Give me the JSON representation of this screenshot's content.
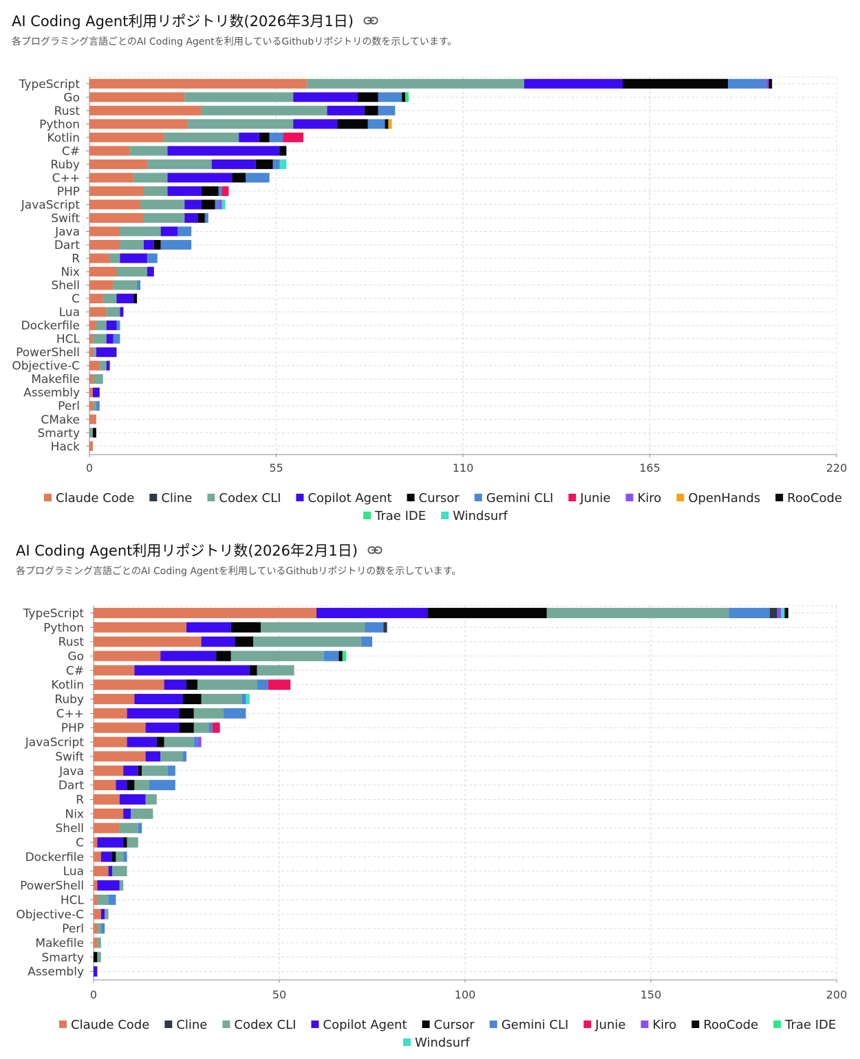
{
  "colors": {
    "Claude Code": "#e07a5a",
    "Cline": "#2f3a45",
    "Codex CLI": "#74a99a",
    "Copilot Agent": "#3d0bf0",
    "Cursor": "#050505",
    "Gemini CLI": "#4a87d4",
    "Junie": "#f0115c",
    "Kiro": "#8a52f2",
    "OpenHands": "#f5a312",
    "RooCode": "#0a0a0a",
    "Trae IDE": "#2ee886",
    "Windsurf": "#3ee0c6"
  },
  "charts": [
    {
      "title": "AI Coding Agent利用リポジトリ数(2026年3月1日)",
      "subtitle": "各プログラミング言語ごとのAI Coding Agentを利用しているGithubリポジトリの数を示しています。"
    },
    {
      "title": "AI Coding Agent利用リポジトリ数(2026年2月1日)",
      "subtitle": "各プログラミング言語ごとのAI Coding Agentを利用しているGithubリポジトリの数を示しています。"
    }
  ],
  "chart_data": [
    {
      "type": "bar",
      "orientation": "horizontal",
      "stacked": true,
      "title": "AI Coding Agent利用リポジトリ数(2026年3月1日)",
      "xlim": [
        0,
        220
      ],
      "xticks": [
        0,
        55,
        110,
        165,
        220
      ],
      "grid": true,
      "legend_position": "bottom",
      "series_names": [
        "Claude Code",
        "Cline",
        "Codex CLI",
        "Copilot Agent",
        "Cursor",
        "Gemini CLI",
        "Junie",
        "Kiro",
        "OpenHands",
        "RooCode",
        "Trae IDE",
        "Windsurf"
      ],
      "categories": [
        "TypeScript",
        "Go",
        "Rust",
        "Python",
        "Kotlin",
        "C#",
        "Ruby",
        "C++",
        "PHP",
        "JavaScript",
        "Swift",
        "Java",
        "Dart",
        "R",
        "Nix",
        "Shell",
        "C",
        "Lua",
        "Dockerfile",
        "HCL",
        "PowerShell",
        "Objective-C",
        "Makefile",
        "Assembly",
        "Perl",
        "CMake",
        "Smarty",
        "Hack"
      ],
      "stacks": [
        [
          [
            "Claude Code",
            64
          ],
          [
            "Codex CLI",
            64
          ],
          [
            "Copilot Agent",
            29
          ],
          [
            "Cursor",
            31
          ],
          [
            "Gemini CLI",
            11
          ],
          [
            "Kiro",
            1
          ],
          [
            "RooCode",
            1
          ]
        ],
        [
          [
            "Claude Code",
            28
          ],
          [
            "Codex CLI",
            32
          ],
          [
            "Copilot Agent",
            19
          ],
          [
            "Cursor",
            6
          ],
          [
            "Gemini CLI",
            7
          ],
          [
            "RooCode",
            1
          ],
          [
            "Trae IDE",
            1
          ]
        ],
        [
          [
            "Claude Code",
            33
          ],
          [
            "Codex CLI",
            37
          ],
          [
            "Copilot Agent",
            11
          ],
          [
            "Cursor",
            4
          ],
          [
            "Gemini CLI",
            5
          ]
        ],
        [
          [
            "Claude Code",
            29
          ],
          [
            "Codex CLI",
            31
          ],
          [
            "Copilot Agent",
            13
          ],
          [
            "Cursor",
            9
          ],
          [
            "Gemini CLI",
            5
          ],
          [
            "RooCode",
            1
          ],
          [
            "OpenHands",
            1
          ]
        ],
        [
          [
            "Claude Code",
            22
          ],
          [
            "Codex CLI",
            22
          ],
          [
            "Copilot Agent",
            6
          ],
          [
            "Cursor",
            3
          ],
          [
            "Gemini CLI",
            4
          ],
          [
            "Junie",
            6
          ]
        ],
        [
          [
            "Claude Code",
            12
          ],
          [
            "Codex CLI",
            11
          ],
          [
            "Copilot Agent",
            33
          ],
          [
            "Cursor",
            2
          ]
        ],
        [
          [
            "Claude Code",
            17
          ],
          [
            "Codex CLI",
            19
          ],
          [
            "Copilot Agent",
            13
          ],
          [
            "Cursor",
            5
          ],
          [
            "Gemini CLI",
            2
          ],
          [
            "Windsurf",
            2
          ]
        ],
        [
          [
            "Claude Code",
            13
          ],
          [
            "Codex CLI",
            10
          ],
          [
            "Copilot Agent",
            19
          ],
          [
            "Cursor",
            4
          ],
          [
            "Gemini CLI",
            7
          ]
        ],
        [
          [
            "Claude Code",
            16
          ],
          [
            "Codex CLI",
            7
          ],
          [
            "Copilot Agent",
            10
          ],
          [
            "Cursor",
            5
          ],
          [
            "Gemini CLI",
            1
          ],
          [
            "Junie",
            2
          ]
        ],
        [
          [
            "Claude Code",
            15
          ],
          [
            "Codex CLI",
            13
          ],
          [
            "Copilot Agent",
            5
          ],
          [
            "Cursor",
            4
          ],
          [
            "Gemini CLI",
            1
          ],
          [
            "Kiro",
            1
          ],
          [
            "Windsurf",
            1
          ]
        ],
        [
          [
            "Claude Code",
            16
          ],
          [
            "Codex CLI",
            12
          ],
          [
            "Copilot Agent",
            4
          ],
          [
            "Cursor",
            2
          ],
          [
            "Gemini CLI",
            1
          ]
        ],
        [
          [
            "Claude Code",
            9
          ],
          [
            "Codex CLI",
            12
          ],
          [
            "Copilot Agent",
            5
          ],
          [
            "Gemini CLI",
            4
          ]
        ],
        [
          [
            "Claude Code",
            9
          ],
          [
            "Codex CLI",
            7
          ],
          [
            "Copilot Agent",
            3
          ],
          [
            "Cursor",
            2
          ],
          [
            "Gemini CLI",
            9
          ]
        ],
        [
          [
            "Claude Code",
            6
          ],
          [
            "Codex CLI",
            3
          ],
          [
            "Copilot Agent",
            8
          ],
          [
            "Gemini CLI",
            3
          ]
        ],
        [
          [
            "Claude Code",
            8
          ],
          [
            "Codex CLI",
            9
          ],
          [
            "Copilot Agent",
            2
          ]
        ],
        [
          [
            "Claude Code",
            7
          ],
          [
            "Codex CLI",
            7
          ],
          [
            "Gemini CLI",
            1
          ]
        ],
        [
          [
            "Claude Code",
            4
          ],
          [
            "Codex CLI",
            4
          ],
          [
            "Copilot Agent",
            5
          ],
          [
            "Cursor",
            1
          ]
        ],
        [
          [
            "Claude Code",
            5
          ],
          [
            "Codex CLI",
            4
          ],
          [
            "Copilot Agent",
            1
          ]
        ],
        [
          [
            "Claude Code",
            2
          ],
          [
            "Codex CLI",
            3
          ],
          [
            "Copilot Agent",
            3
          ],
          [
            "Gemini CLI",
            1
          ]
        ],
        [
          [
            "Claude Code",
            1
          ],
          [
            "Codex CLI",
            4
          ],
          [
            "Copilot Agent",
            2
          ],
          [
            "Gemini CLI",
            2
          ]
        ],
        [
          [
            "Claude Code",
            1
          ],
          [
            "Codex CLI",
            1
          ],
          [
            "Copilot Agent",
            6
          ]
        ],
        [
          [
            "Claude Code",
            3
          ],
          [
            "Codex CLI",
            2
          ],
          [
            "Copilot Agent",
            1
          ]
        ],
        [
          [
            "Claude Code",
            1
          ],
          [
            "Codex CLI",
            3
          ]
        ],
        [
          [
            "Claude Code",
            1
          ],
          [
            "Copilot Agent",
            2
          ]
        ],
        [
          [
            "Claude Code",
            1
          ],
          [
            "Codex CLI",
            1
          ],
          [
            "Gemini CLI",
            1
          ]
        ],
        [
          [
            "Claude Code",
            2
          ]
        ],
        [
          [
            "Codex CLI",
            1
          ],
          [
            "Cursor",
            1
          ]
        ],
        [
          [
            "Claude Code",
            1
          ]
        ]
      ]
    },
    {
      "type": "bar",
      "orientation": "horizontal",
      "stacked": true,
      "title": "AI Coding Agent利用リポジトリ数(2026年2月1日)",
      "xlim": [
        0,
        200
      ],
      "xticks": [
        0,
        50,
        100,
        150,
        200
      ],
      "grid": true,
      "legend_position": "bottom",
      "series_names": [
        "Claude Code",
        "Cline",
        "Codex CLI",
        "Copilot Agent",
        "Cursor",
        "Gemini CLI",
        "Junie",
        "Kiro",
        "RooCode",
        "Trae IDE",
        "Windsurf"
      ],
      "categories": [
        "TypeScript",
        "Python",
        "Rust",
        "Go",
        "C#",
        "Kotlin",
        "Ruby",
        "C++",
        "PHP",
        "JavaScript",
        "Swift",
        "Java",
        "Dart",
        "R",
        "Nix",
        "Shell",
        "C",
        "Dockerfile",
        "Lua",
        "PowerShell",
        "HCL",
        "Objective-C",
        "Perl",
        "Makefile",
        "Smarty",
        "Assembly"
      ],
      "stacks": [
        [
          [
            "Claude Code",
            60
          ],
          [
            "Copilot Agent",
            30
          ],
          [
            "Cursor",
            32
          ],
          [
            "Codex CLI",
            49
          ],
          [
            "Gemini CLI",
            11
          ],
          [
            "Cline",
            2
          ],
          [
            "Kiro",
            1
          ],
          [
            "Windsurf",
            1
          ],
          [
            "RooCode",
            1
          ]
        ],
        [
          [
            "Claude Code",
            25
          ],
          [
            "Copilot Agent",
            12
          ],
          [
            "Cursor",
            8
          ],
          [
            "Codex CLI",
            28
          ],
          [
            "Gemini CLI",
            5
          ],
          [
            "Cline",
            1
          ]
        ],
        [
          [
            "Claude Code",
            29
          ],
          [
            "Copilot Agent",
            9
          ],
          [
            "Cursor",
            5
          ],
          [
            "Codex CLI",
            29
          ],
          [
            "Gemini CLI",
            3
          ]
        ],
        [
          [
            "Claude Code",
            18
          ],
          [
            "Copilot Agent",
            15
          ],
          [
            "Cursor",
            4
          ],
          [
            "Codex CLI",
            25
          ],
          [
            "Gemini CLI",
            4
          ],
          [
            "RooCode",
            1
          ],
          [
            "Trae IDE",
            1
          ]
        ],
        [
          [
            "Claude Code",
            11
          ],
          [
            "Copilot Agent",
            31
          ],
          [
            "Cursor",
            2
          ],
          [
            "Codex CLI",
            10
          ]
        ],
        [
          [
            "Claude Code",
            19
          ],
          [
            "Copilot Agent",
            6
          ],
          [
            "Cursor",
            3
          ],
          [
            "Codex CLI",
            16
          ],
          [
            "Gemini CLI",
            3
          ],
          [
            "Junie",
            6
          ]
        ],
        [
          [
            "Claude Code",
            11
          ],
          [
            "Copilot Agent",
            13
          ],
          [
            "Cursor",
            5
          ],
          [
            "Codex CLI",
            11
          ],
          [
            "Gemini CLI",
            1
          ],
          [
            "Windsurf",
            1
          ]
        ],
        [
          [
            "Claude Code",
            9
          ],
          [
            "Copilot Agent",
            14
          ],
          [
            "Cursor",
            4
          ],
          [
            "Codex CLI",
            8
          ],
          [
            "Gemini CLI",
            6
          ]
        ],
        [
          [
            "Claude Code",
            14
          ],
          [
            "Copilot Agent",
            9
          ],
          [
            "Cursor",
            4
          ],
          [
            "Codex CLI",
            4
          ],
          [
            "Gemini CLI",
            1
          ],
          [
            "Junie",
            2
          ]
        ],
        [
          [
            "Claude Code",
            9
          ],
          [
            "Copilot Agent",
            8
          ],
          [
            "Cursor",
            2
          ],
          [
            "Codex CLI",
            8
          ],
          [
            "Gemini CLI",
            1
          ],
          [
            "Kiro",
            1
          ]
        ],
        [
          [
            "Claude Code",
            14
          ],
          [
            "Copilot Agent",
            4
          ],
          [
            "Codex CLI",
            6
          ],
          [
            "Gemini CLI",
            1
          ]
        ],
        [
          [
            "Claude Code",
            8
          ],
          [
            "Copilot Agent",
            4
          ],
          [
            "Cursor",
            1
          ],
          [
            "Codex CLI",
            7
          ],
          [
            "Gemini CLI",
            2
          ]
        ],
        [
          [
            "Claude Code",
            6
          ],
          [
            "Copilot Agent",
            3
          ],
          [
            "Cursor",
            2
          ],
          [
            "Codex CLI",
            4
          ],
          [
            "Gemini CLI",
            7
          ]
        ],
        [
          [
            "Claude Code",
            7
          ],
          [
            "Copilot Agent",
            7
          ],
          [
            "Codex CLI",
            3
          ]
        ],
        [
          [
            "Claude Code",
            8
          ],
          [
            "Copilot Agent",
            2
          ],
          [
            "Codex CLI",
            6
          ]
        ],
        [
          [
            "Claude Code",
            7
          ],
          [
            "Codex CLI",
            5
          ],
          [
            "Gemini CLI",
            1
          ]
        ],
        [
          [
            "Claude Code",
            1
          ],
          [
            "Copilot Agent",
            7
          ],
          [
            "Cursor",
            1
          ],
          [
            "Codex CLI",
            3
          ]
        ],
        [
          [
            "Claude Code",
            2
          ],
          [
            "Copilot Agent",
            3
          ],
          [
            "Cursor",
            1
          ],
          [
            "Codex CLI",
            2
          ],
          [
            "Gemini CLI",
            1
          ]
        ],
        [
          [
            "Claude Code",
            4
          ],
          [
            "Copilot Agent",
            1
          ],
          [
            "Codex CLI",
            4
          ]
        ],
        [
          [
            "Claude Code",
            1
          ],
          [
            "Copilot Agent",
            6
          ],
          [
            "Codex CLI",
            1
          ]
        ],
        [
          [
            "Claude Code",
            1
          ],
          [
            "Codex CLI",
            3
          ],
          [
            "Gemini CLI",
            2
          ]
        ],
        [
          [
            "Claude Code",
            2
          ],
          [
            "Copilot Agent",
            1
          ],
          [
            "Codex CLI",
            1
          ]
        ],
        [
          [
            "Claude Code",
            1
          ],
          [
            "Codex CLI",
            1
          ],
          [
            "Gemini CLI",
            1
          ]
        ],
        [
          [
            "Claude Code",
            1
          ],
          [
            "Codex CLI",
            1
          ]
        ],
        [
          [
            "Cursor",
            1
          ],
          [
            "Codex CLI",
            1
          ]
        ],
        [
          [
            "Copilot Agent",
            1
          ]
        ]
      ]
    }
  ]
}
